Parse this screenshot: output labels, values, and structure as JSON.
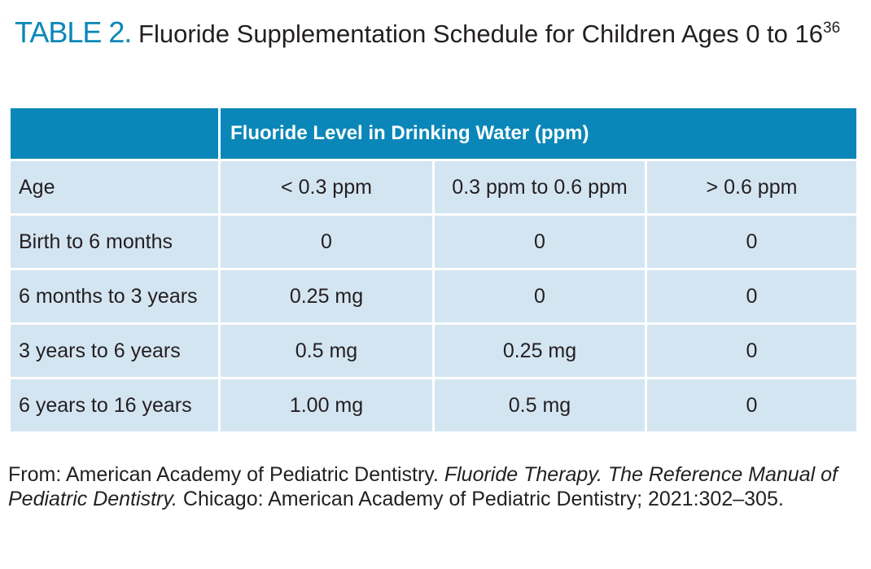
{
  "title": {
    "label": "TABLE 2.",
    "text": "Fluoride Supplementation Schedule for Children Ages 0 to 16",
    "ref": "36"
  },
  "table": {
    "group_header": "Fluoride Level in Drinking Water (ppm)",
    "columns": [
      "Age",
      "< 0.3 ppm",
      "0.3 ppm to 0.6 ppm",
      "> 0.6 ppm"
    ],
    "rows": [
      [
        "Birth to 6 months",
        "0",
        "0",
        "0"
      ],
      [
        "6 months to 3 years",
        "0.25 mg",
        "0",
        "0"
      ],
      [
        "3 years to 6 years",
        "0.5 mg",
        "0.25 mg",
        "0"
      ],
      [
        "6 years to 16 years",
        "1.00 mg",
        "0.5 mg",
        "0"
      ]
    ]
  },
  "source": {
    "parts": [
      "From: American Academy of Pediatric Dentistry.",
      "Fluoride Therapy. The Reference Manual of Pediatric Dentistry.",
      "Chicago: American Academy of Pediatric Dentistry; 2021:302–305."
    ]
  }
}
